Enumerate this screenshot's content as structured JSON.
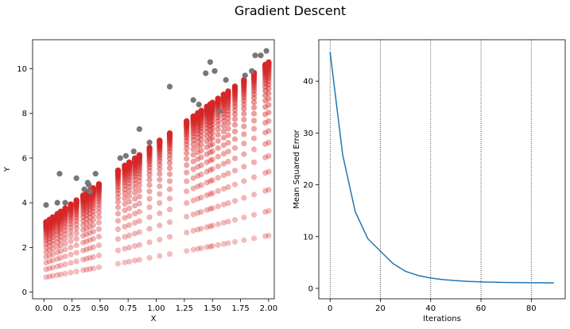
{
  "figure_title": "Gradient Descent",
  "colors": {
    "data_points": "#777777",
    "fit_points": "#d62728",
    "mse_line": "#1f77b4",
    "vlines": "#000000"
  },
  "chart_data": [
    {
      "type": "scatter",
      "xlabel": "X",
      "ylabel": "Y",
      "xlim": [
        -0.1,
        2.05
      ],
      "ylim": [
        -0.3,
        11.3
      ],
      "xticks": [
        0.0,
        0.25,
        0.5,
        0.75,
        1.0,
        1.25,
        1.5,
        1.75,
        2.0
      ],
      "xtick_labels": [
        "0.00",
        "0.25",
        "0.50",
        "0.75",
        "1.00",
        "1.25",
        "1.50",
        "1.75",
        "2.00"
      ],
      "yticks": [
        0,
        2,
        4,
        6,
        8,
        10
      ],
      "ytick_labels": [
        "0",
        "2",
        "4",
        "6",
        "8",
        "10"
      ],
      "grid": false,
      "series": [
        {
          "x": [
            0.02,
            0.12,
            0.14,
            0.19,
            0.29,
            0.36,
            0.39,
            0.4,
            0.41,
            0.46,
            0.68,
            0.73,
            0.8,
            0.85,
            0.94,
            1.12,
            1.33,
            1.38,
            1.44,
            1.48,
            1.52,
            1.56,
            1.62,
            1.79,
            1.85,
            1.88,
            1.93,
            1.98
          ],
          "y": [
            3.9,
            4.0,
            5.3,
            4.0,
            5.1,
            4.6,
            4.9,
            4.8,
            4.5,
            5.3,
            6.0,
            6.1,
            6.3,
            7.3,
            6.7,
            9.2,
            8.6,
            8.4,
            9.8,
            10.3,
            9.9,
            8.1,
            9.5,
            9.7,
            9.9,
            10.6,
            10.6,
            10.8
          ]
        }
      ],
      "fit_trajectory": {
        "x": [
          0.02,
          0.05,
          0.08,
          0.12,
          0.15,
          0.19,
          0.24,
          0.29,
          0.35,
          0.38,
          0.41,
          0.44,
          0.49,
          0.66,
          0.72,
          0.76,
          0.81,
          0.85,
          0.94,
          1.03,
          1.12,
          1.27,
          1.33,
          1.37,
          1.4,
          1.45,
          1.48,
          1.5,
          1.55,
          1.6,
          1.64,
          1.7,
          1.78,
          1.87,
          1.97,
          2.0
        ],
        "initial": {
          "intercept": 0.25,
          "slope": 0.5
        },
        "final": {
          "intercept": 3.1,
          "slope": 3.65
        },
        "iterations": 30
      }
    },
    {
      "type": "line",
      "xlabel": "Iterations",
      "ylabel": "Mean Squared Error",
      "xlim": [
        -4.5,
        93.5
      ],
      "ylim": [
        -2.0,
        48.0
      ],
      "xticks": [
        0,
        20,
        40,
        60,
        80
      ],
      "xtick_labels": [
        "0",
        "20",
        "40",
        "60",
        "80"
      ],
      "yticks": [
        0,
        10,
        20,
        30,
        40
      ],
      "ytick_labels": [
        "0",
        "10",
        "20",
        "30",
        "40"
      ],
      "vlines": [
        0,
        20,
        40,
        60,
        80
      ],
      "series": [
        {
          "x": [
            0,
            5,
            10,
            15,
            20,
            25,
            30,
            35,
            40,
            45,
            50,
            55,
            60,
            65,
            70,
            75,
            80,
            85,
            89
          ],
          "y": [
            45.6,
            25.8,
            14.8,
            9.6,
            7.2,
            4.8,
            3.3,
            2.5,
            2.0,
            1.7,
            1.5,
            1.35,
            1.25,
            1.2,
            1.15,
            1.12,
            1.1,
            1.08,
            1.07
          ]
        }
      ]
    }
  ]
}
